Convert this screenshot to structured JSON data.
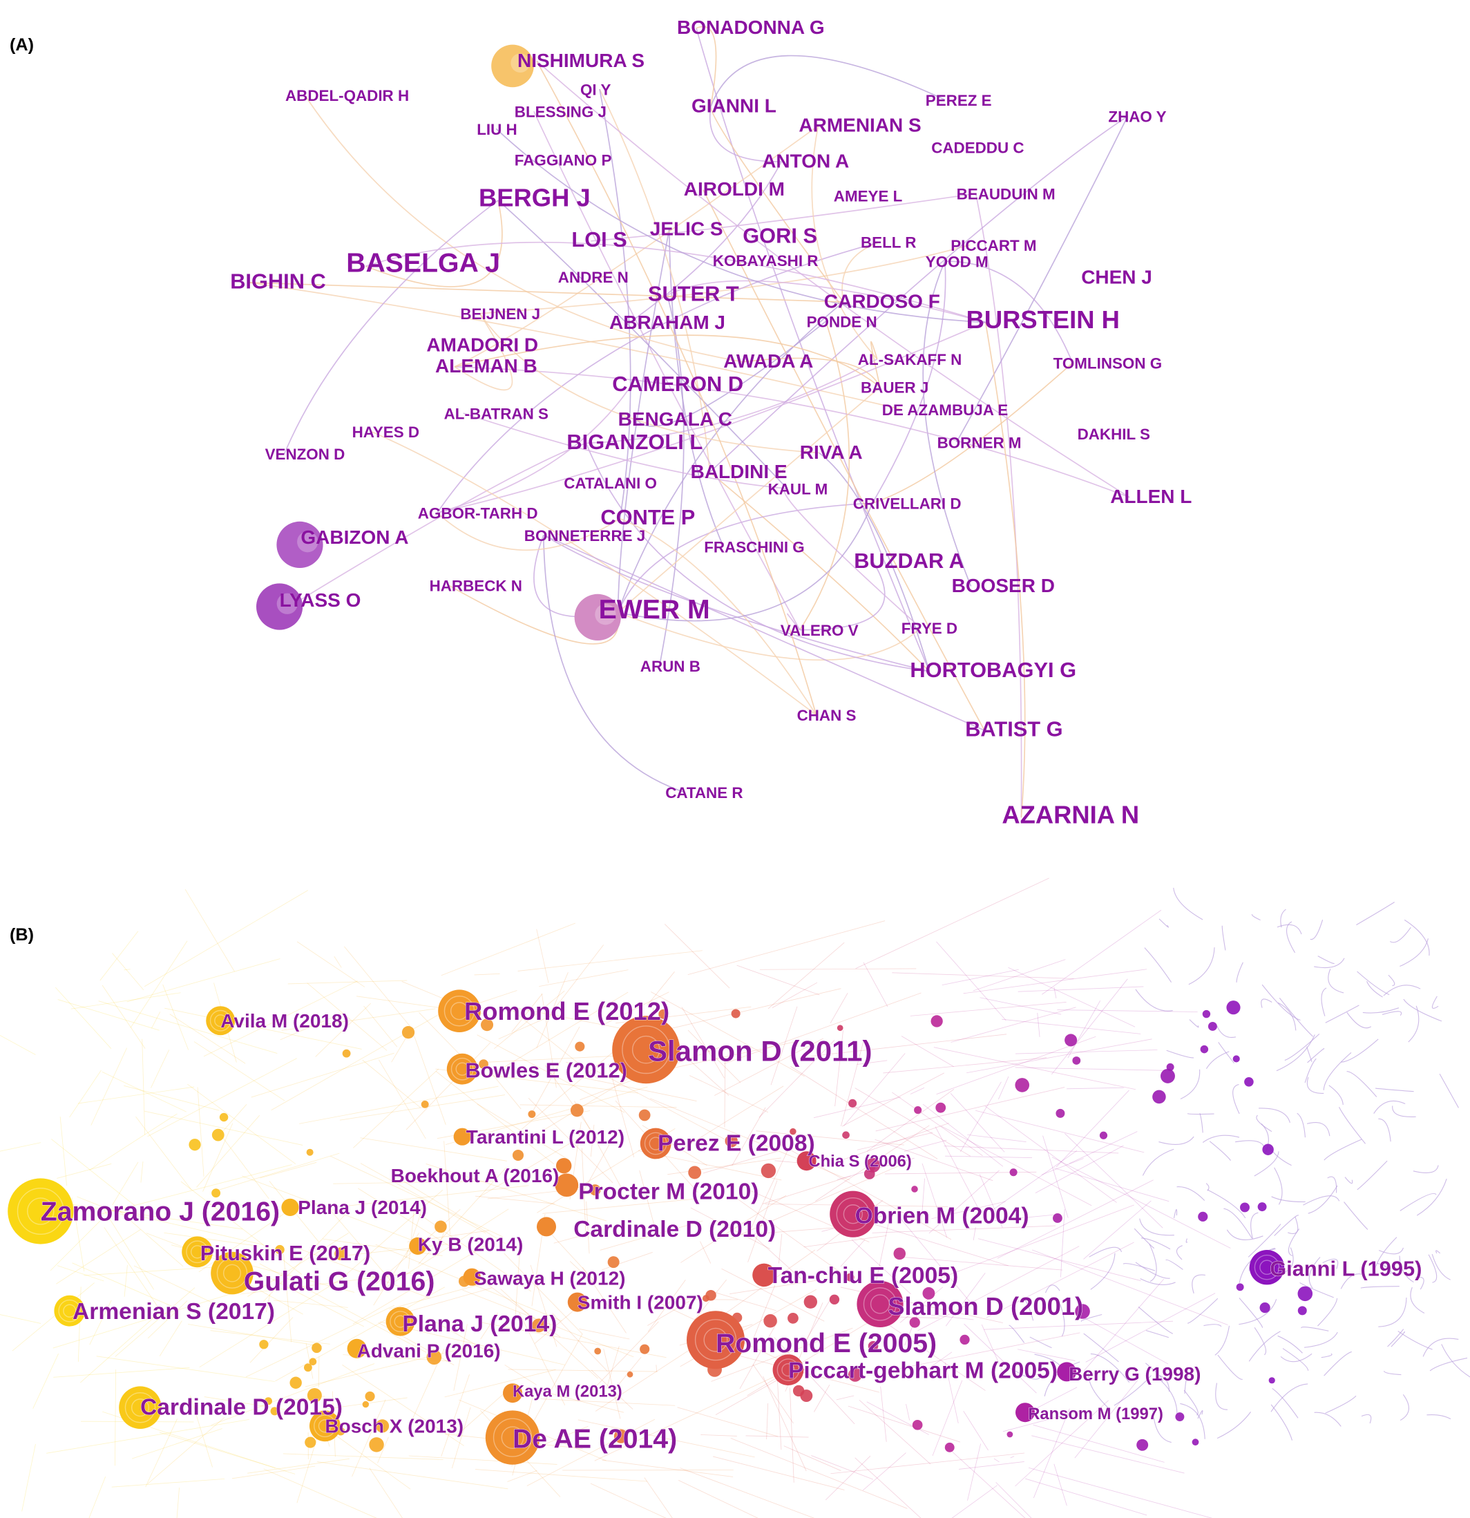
{
  "panel_a": {
    "label": "(A)",
    "nodes": [
      "BONADONNA G",
      "NISHIMURA S",
      "ABDEL-QADIR H",
      "QI Y",
      "BLESSING J",
      "GIANNI L",
      "LIU H",
      "PEREZ E",
      "ARMENIAN S",
      "ZHAO Y",
      "CADEDDU C",
      "FAGGIANO P",
      "ANTON A",
      "AIROLDI M",
      "BERGH J",
      "AMEYE L",
      "BEAUDUIN M",
      "JELIC S",
      "GORI S",
      "LOI S",
      "BELL R",
      "PICCART M",
      "BASELGA J",
      "KOBAYASHI R",
      "YOOD M",
      "BIGHIN C",
      "ANDRE N",
      "CHEN J",
      "SUTER T",
      "CARDOSO F",
      "BURSTEIN H",
      "BEIJNEN J",
      "ABRAHAM J",
      "PONDE N",
      "AMADORI D",
      "ALEMAN B",
      "AWADA A",
      "AL-SAKAFF N",
      "TOMLINSON G",
      "CAMERON D",
      "BAUER J",
      "AL-BATRAN S",
      "DE AZAMBUJA E",
      "BENGALA C",
      "HAYES D",
      "DAKHIL S",
      "BIGANZOLI L",
      "BORNER M",
      "RIVA A",
      "VENZON D",
      "BALDINI E",
      "CATALANI O",
      "KAUL M",
      "CRIVELLARI D",
      "ALLEN L",
      "AGBOR-TARH D",
      "CONTE P",
      "GABIZON A",
      "BONNETERRE J",
      "FRASCHINI G",
      "BUZDAR A",
      "BOOSER D",
      "HARBECK N",
      "LYASS O",
      "EWER M",
      "FRYE D",
      "VALERO V",
      "HORTOBAGYI G",
      "ARUN B",
      "CHAN S",
      "BATIST G",
      "CATANE R",
      "AZARNIA N"
    ]
  },
  "panel_b": {
    "label": "(B)",
    "nodes": [
      "Romond E (2012)",
      "Avila M (2018)",
      "Slamon D (2011)",
      "Bowles E (2012)",
      "Tarantini L (2012)",
      "Perez E (2008)",
      "Chia S (2006)",
      "Boekhout A (2016)",
      "Procter M (2010)",
      "Zamorano J (2016)",
      "Plana J (2014)",
      "Obrien M (2004)",
      "Cardinale D (2010)",
      "Pituskin E (2017)",
      "Ky B (2014)",
      "Gulati G (2016)",
      "Sawaya H (2012)",
      "Gianni L (1995)",
      "Tan-chiu E (2005)",
      "Armenian S (2017)",
      "Slamon D (2001)",
      "Smith I (2007)",
      "Plana J (2014)",
      "Romond E (2005)",
      "Advani P (2016)",
      "Piccart-gebhart M (2005)",
      "Berry G (1998)",
      "Kaya M (2013)",
      "Cardinale D (2015)",
      "Ransom M (1997)",
      "Bosch X (2013)",
      "De AE (2014)"
    ]
  }
}
